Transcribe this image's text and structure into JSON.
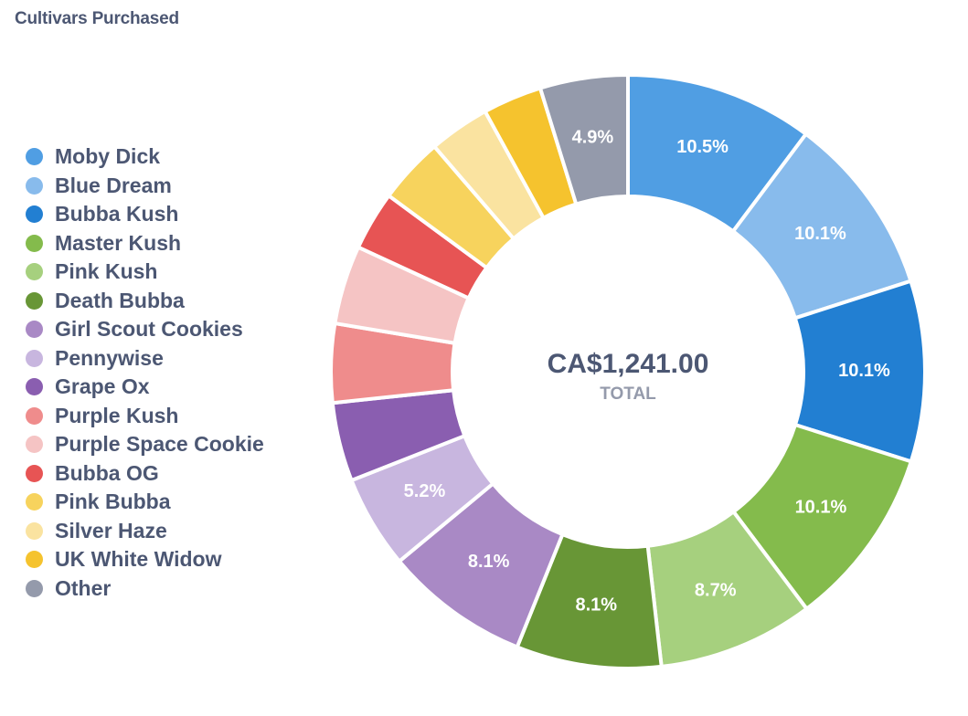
{
  "card": {
    "title": "Cultivars Purchased"
  },
  "chart_data": {
    "type": "pie",
    "variant": "donut",
    "title": "Cultivars Purchased",
    "total_value": "CA$1,241.00",
    "total_label": "TOTAL",
    "legend_position": "left",
    "slices": [
      {
        "name": "Moby Dick",
        "percent": 10.5,
        "label": "10.5%",
        "color": "#509ee3"
      },
      {
        "name": "Blue Dream",
        "percent": 10.1,
        "label": "10.1%",
        "color": "#88bbec"
      },
      {
        "name": "Bubba Kush",
        "percent": 10.1,
        "label": "10.1%",
        "color": "#227fd2"
      },
      {
        "name": "Master Kush",
        "percent": 10.1,
        "label": "10.1%",
        "color": "#84bb4c"
      },
      {
        "name": "Pink Kush",
        "percent": 8.7,
        "label": "8.7%",
        "color": "#a6d07e"
      },
      {
        "name": "Death Bubba",
        "percent": 8.1,
        "label": "8.1%",
        "color": "#689636"
      },
      {
        "name": "Girl Scout Cookies",
        "percent": 8.1,
        "label": "8.1%",
        "color": "#a989c5"
      },
      {
        "name": "Pennywise",
        "percent": 5.2,
        "label": "5.2%",
        "color": "#c8b6df"
      },
      {
        "name": "Grape Ox",
        "percent": 4.4,
        "label": "",
        "color": "#8a5eb0"
      },
      {
        "name": "Purple Kush",
        "percent": 4.4,
        "label": "",
        "color": "#ef8c8c"
      },
      {
        "name": "Purple Space Cookie",
        "percent": 4.4,
        "label": "",
        "color": "#f5c4c4"
      },
      {
        "name": "Bubba OG",
        "percent": 3.3,
        "label": "",
        "color": "#e75454"
      },
      {
        "name": "Pink Bubba",
        "percent": 3.7,
        "label": "",
        "color": "#f7d35d"
      },
      {
        "name": "Silver Haze",
        "percent": 3.4,
        "label": "",
        "color": "#fae3a0"
      },
      {
        "name": "UK White Widow",
        "percent": 3.3,
        "label": "",
        "color": "#f5c32e"
      },
      {
        "name": "Other",
        "percent": 4.9,
        "label": "4.9%",
        "color": "#949aab"
      }
    ]
  }
}
